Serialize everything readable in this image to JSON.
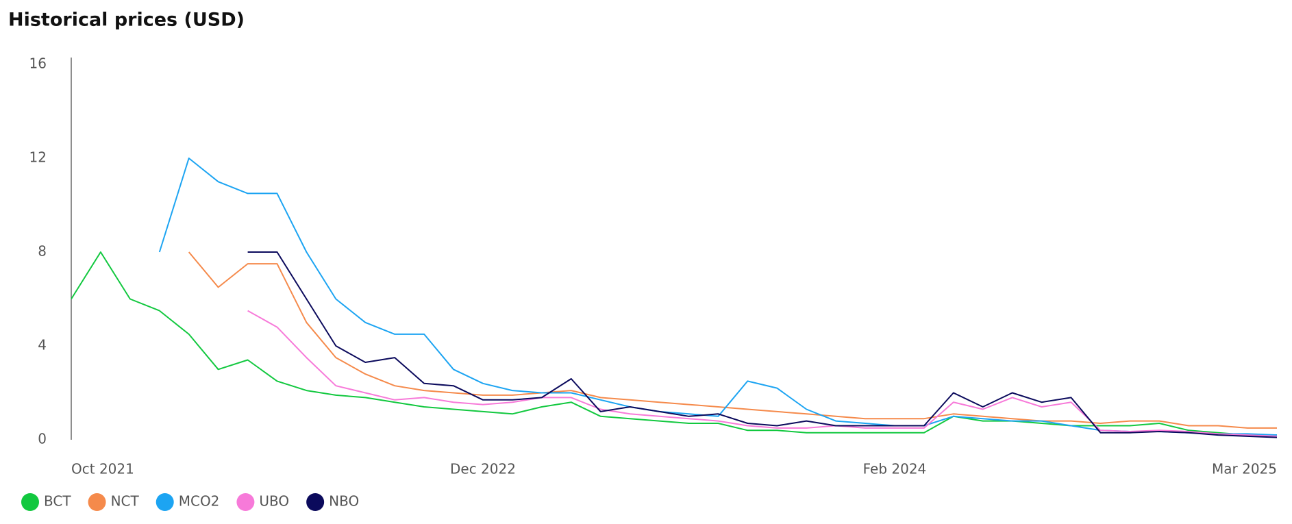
{
  "chart_data": {
    "type": "line",
    "title": "Historical prices (USD)",
    "x": [
      "2021-10",
      "2021-11",
      "2021-12",
      "2022-01",
      "2022-02",
      "2022-03",
      "2022-04",
      "2022-05",
      "2022-06",
      "2022-07",
      "2022-08",
      "2022-09",
      "2022-10",
      "2022-11",
      "2022-12",
      "2023-01",
      "2023-02",
      "2023-03",
      "2023-04",
      "2023-05",
      "2023-06",
      "2023-07",
      "2023-08",
      "2023-09",
      "2023-10",
      "2023-11",
      "2023-12",
      "2024-01",
      "2024-02",
      "2024-03",
      "2024-04",
      "2024-05",
      "2024-06",
      "2024-07",
      "2024-08",
      "2024-09",
      "2024-10",
      "2024-11",
      "2024-12",
      "2025-01",
      "2025-02",
      "2025-03"
    ],
    "xlim": [
      "2021-10",
      "2025-03"
    ],
    "xticks": [
      {
        "value": "2021-10",
        "label": "Oct 2021"
      },
      {
        "value": "2022-12",
        "label": "Dec 2022"
      },
      {
        "value": "2024-02",
        "label": "Feb 2024"
      },
      {
        "value": "2025-03",
        "label": "Mar 2025"
      }
    ],
    "ylim": [
      0,
      16
    ],
    "yticks": [
      0,
      4,
      8,
      12,
      16
    ],
    "grid": false,
    "legend": "bottom-left",
    "series": [
      {
        "name": "BCT",
        "color": "#12c83f",
        "values": [
          6,
          8,
          6,
          5.5,
          4.5,
          3,
          3.4,
          2.5,
          2.1,
          1.9,
          1.8,
          1.6,
          1.4,
          1.3,
          1.2,
          1.1,
          1.4,
          1.6,
          1.0,
          0.9,
          0.8,
          0.7,
          0.7,
          0.4,
          0.4,
          0.3,
          0.3,
          0.3,
          0.3,
          0.3,
          1.0,
          0.8,
          0.8,
          0.7,
          0.6,
          0.6,
          0.6,
          0.7,
          0.4,
          0.3,
          0.2,
          0.2
        ]
      },
      {
        "name": "NCT",
        "color": "#f58a4b",
        "values": [
          null,
          null,
          null,
          null,
          8,
          6.5,
          7.5,
          7.5,
          5,
          3.5,
          2.8,
          2.3,
          2.1,
          2.0,
          1.9,
          1.9,
          2.0,
          2.1,
          1.8,
          1.7,
          1.6,
          1.5,
          1.4,
          1.3,
          1.2,
          1.1,
          1.0,
          0.9,
          0.9,
          0.9,
          1.1,
          1.0,
          0.9,
          0.8,
          0.8,
          0.7,
          0.8,
          0.8,
          0.6,
          0.6,
          0.5,
          0.5
        ]
      },
      {
        "name": "MCO2",
        "color": "#1ca4f2",
        "values": [
          null,
          null,
          null,
          8,
          12,
          11,
          10.5,
          10.5,
          8,
          6,
          5,
          4.5,
          4.5,
          3,
          2.4,
          2.1,
          2.0,
          2.0,
          1.7,
          1.4,
          1.2,
          1.1,
          1.0,
          2.5,
          2.2,
          1.3,
          0.8,
          0.7,
          0.6,
          0.6,
          1.0,
          0.9,
          0.8,
          0.8,
          0.6,
          0.4,
          0.35,
          0.35,
          0.3,
          0.25,
          0.25,
          0.2
        ]
      },
      {
        "name": "UBO",
        "color": "#f77ad9",
        "values": [
          null,
          null,
          null,
          null,
          null,
          null,
          5.5,
          4.8,
          3.5,
          2.3,
          2.0,
          1.7,
          1.8,
          1.6,
          1.5,
          1.6,
          1.8,
          1.8,
          1.3,
          1.1,
          1.0,
          0.9,
          0.8,
          0.6,
          0.5,
          0.5,
          0.6,
          0.5,
          0.5,
          0.5,
          1.6,
          1.3,
          1.8,
          1.4,
          1.6,
          0.4,
          0.35,
          0.4,
          0.35,
          0.25,
          0.2,
          0.15
        ]
      },
      {
        "name": "NBO",
        "color": "#0b0a5c",
        "values": [
          null,
          null,
          null,
          null,
          null,
          null,
          8,
          8,
          6,
          4,
          3.3,
          3.5,
          2.4,
          2.3,
          1.7,
          1.7,
          1.8,
          2.6,
          1.2,
          1.4,
          1.2,
          1.0,
          1.1,
          0.7,
          0.6,
          0.8,
          0.6,
          0.6,
          0.6,
          0.6,
          2.0,
          1.4,
          2.0,
          1.6,
          1.8,
          0.3,
          0.3,
          0.35,
          0.3,
          0.2,
          0.15,
          0.1
        ]
      }
    ]
  }
}
